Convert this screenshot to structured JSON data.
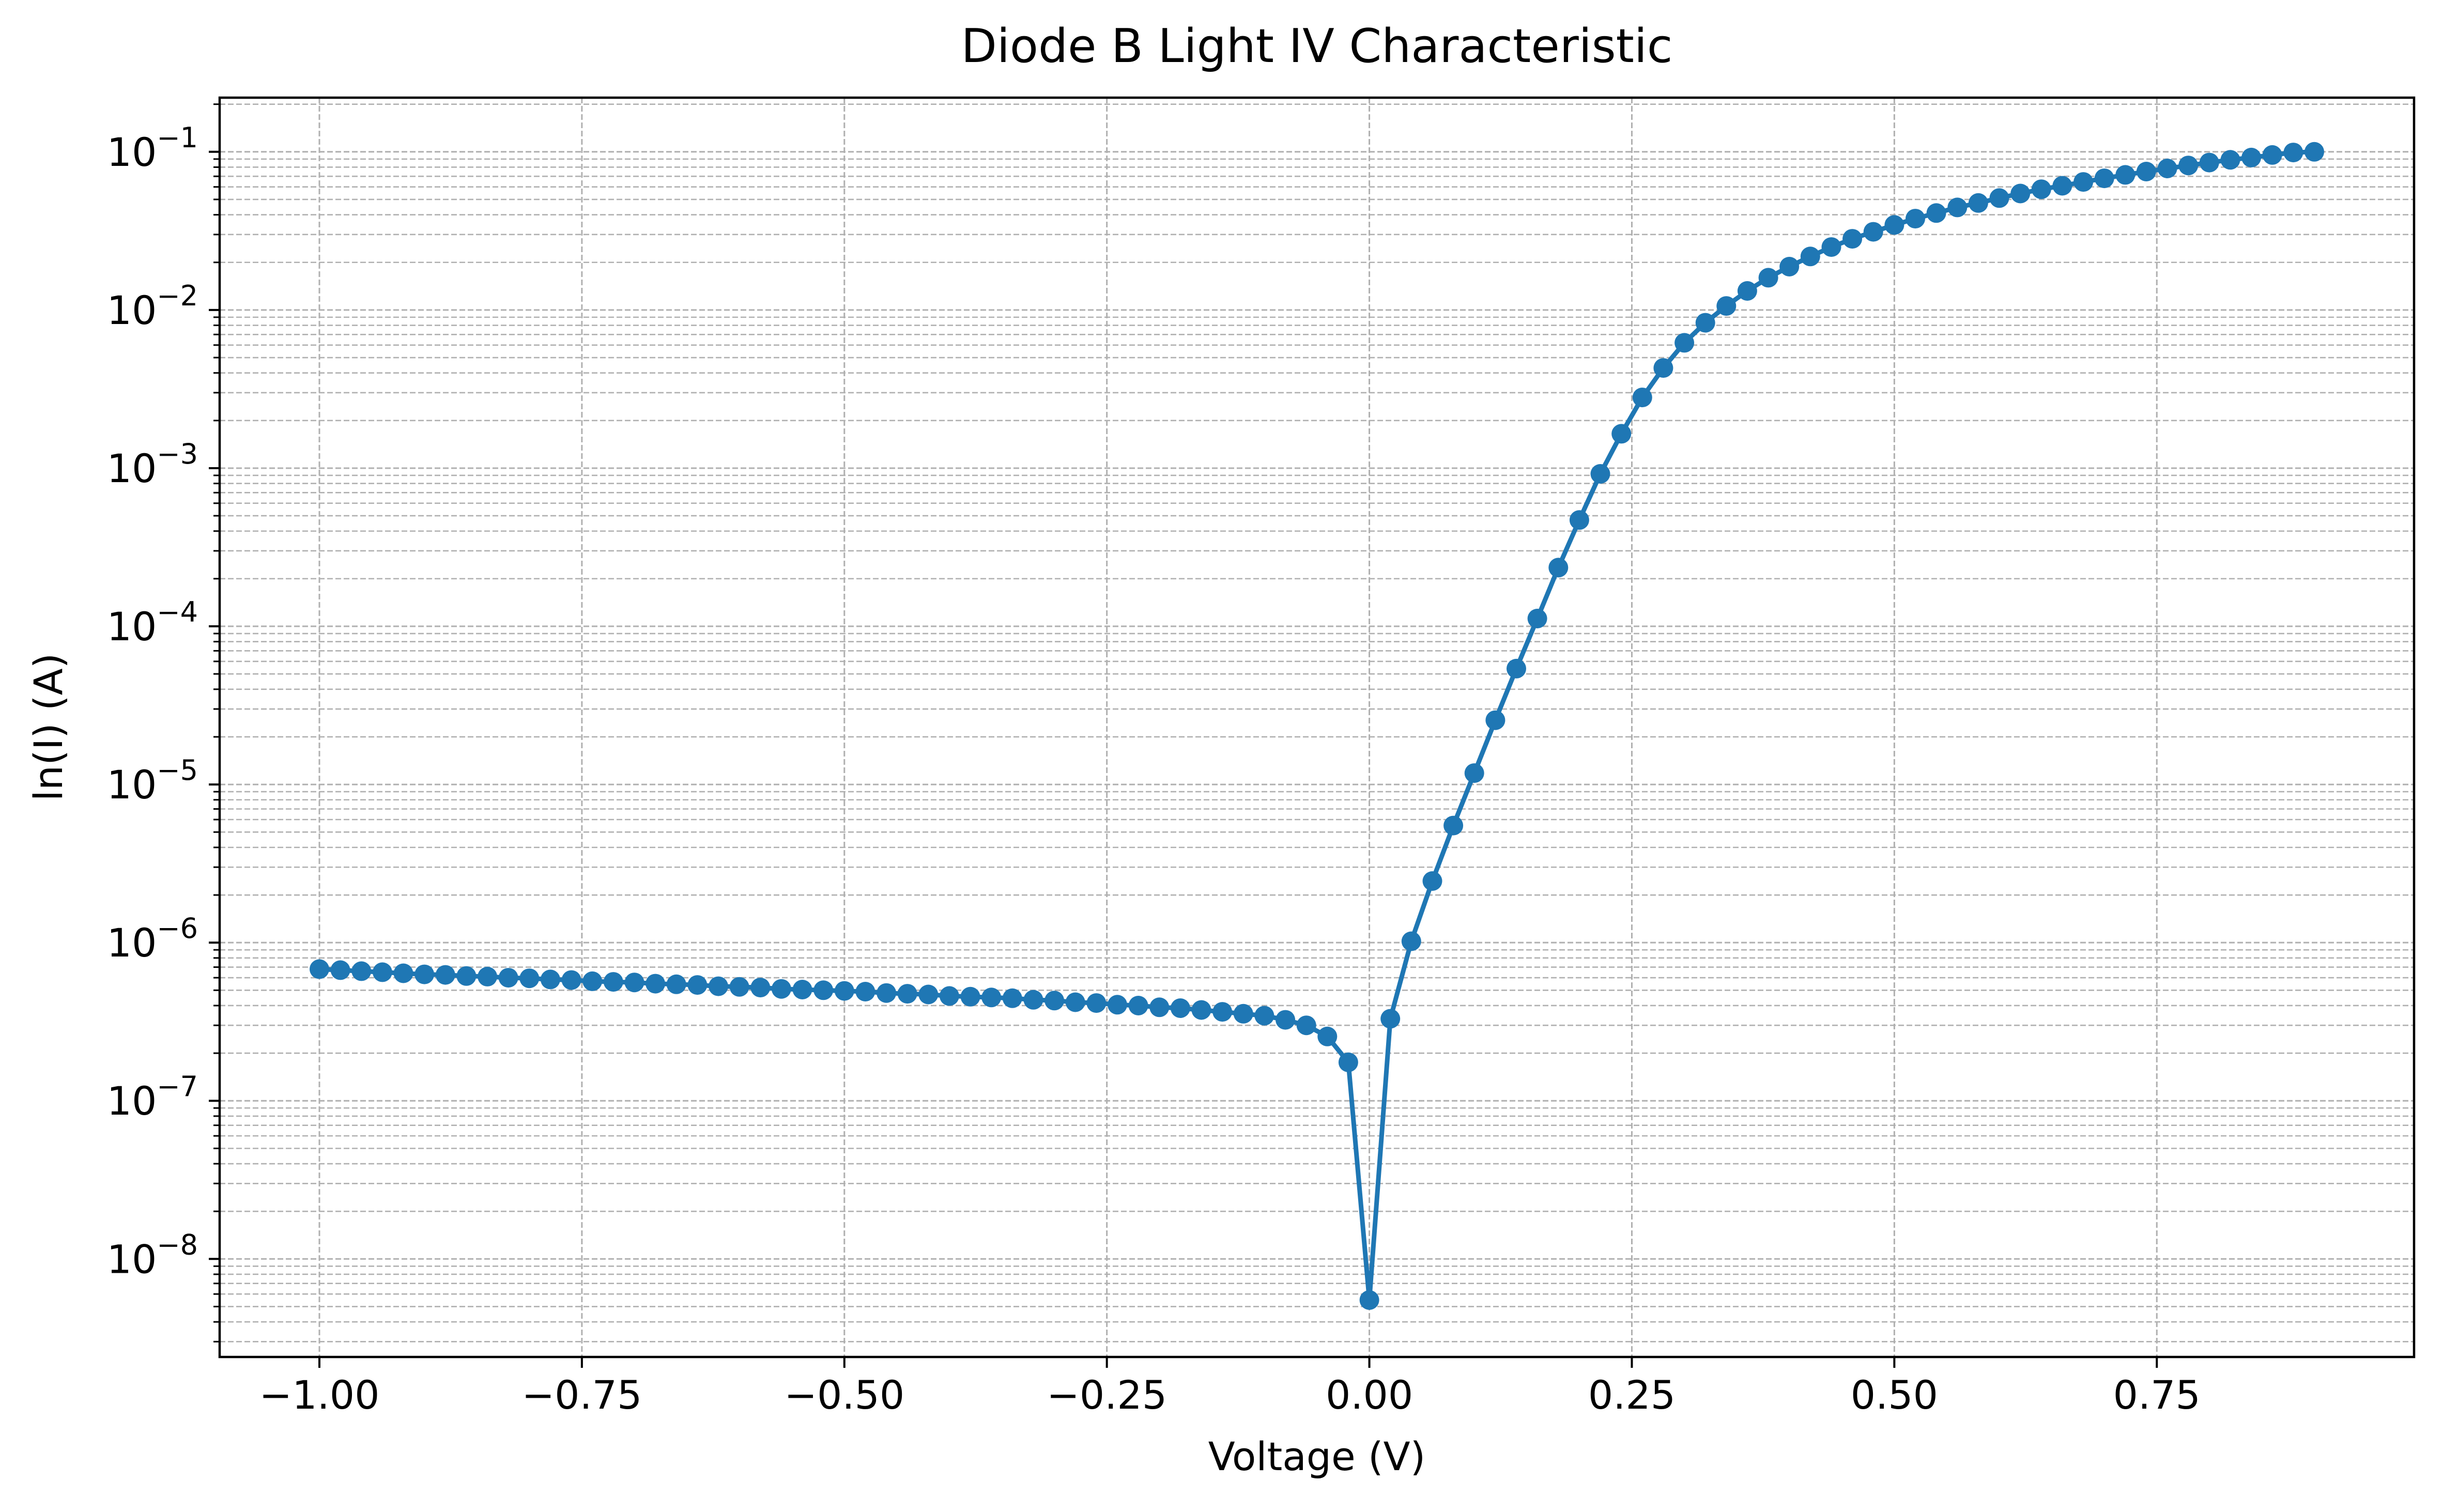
{
  "chart_data": {
    "type": "line",
    "title": "Diode B Light IV Characteristic",
    "xlabel": "Voltage (V)",
    "ylabel": "ln(I) (A)",
    "xscale": "linear",
    "yscale": "log",
    "xlim": [
      -1.095,
      0.995
    ],
    "ylim": [
      2.4e-09,
      0.22
    ],
    "xticks": [
      -1.0,
      -0.75,
      -0.5,
      -0.25,
      0.0,
      0.25,
      0.5,
      0.75
    ],
    "xtick_labels": [
      "−1.00",
      "−0.75",
      "−0.50",
      "−0.25",
      "0.00",
      "0.25",
      "0.50",
      "0.75"
    ],
    "yticks": [
      1e-08,
      1e-07,
      1e-06,
      1e-05,
      0.0001,
      0.001,
      0.01,
      0.1
    ],
    "ytick_labels": [
      {
        "base": "10",
        "exp": "−8"
      },
      {
        "base": "10",
        "exp": "−7"
      },
      {
        "base": "10",
        "exp": "−6"
      },
      {
        "base": "10",
        "exp": "−5"
      },
      {
        "base": "10",
        "exp": "−4"
      },
      {
        "base": "10",
        "exp": "−3"
      },
      {
        "base": "10",
        "exp": "−2"
      },
      {
        "base": "10",
        "exp": "−1"
      }
    ],
    "grid": {
      "major": true,
      "minor": true,
      "style": "dashed"
    },
    "series": [
      {
        "color": "#1f77b4",
        "marker": "circle",
        "x": [
          -1.0,
          -0.98,
          -0.96,
          -0.94,
          -0.92,
          -0.9,
          -0.88,
          -0.86,
          -0.84,
          -0.82,
          -0.8,
          -0.78,
          -0.76,
          -0.74,
          -0.72,
          -0.7,
          -0.68,
          -0.66,
          -0.64,
          -0.62,
          -0.6,
          -0.58,
          -0.56,
          -0.54,
          -0.52,
          -0.5,
          -0.48,
          -0.46,
          -0.44,
          -0.42,
          -0.4,
          -0.38,
          -0.36,
          -0.34,
          -0.32,
          -0.3,
          -0.28,
          -0.26,
          -0.24,
          -0.22,
          -0.2,
          -0.18,
          -0.16,
          -0.14,
          -0.12,
          -0.1,
          -0.08,
          -0.06,
          -0.04,
          -0.02,
          0.0,
          0.02,
          0.04,
          0.06,
          0.08,
          0.1,
          0.12,
          0.14,
          0.16,
          0.18,
          0.2,
          0.22,
          0.24,
          0.26,
          0.28,
          0.3,
          0.32,
          0.34,
          0.36,
          0.38,
          0.4,
          0.42,
          0.44,
          0.46,
          0.48,
          0.5,
          0.52,
          0.54,
          0.56,
          0.58,
          0.6,
          0.62,
          0.64,
          0.66,
          0.68,
          0.7,
          0.72,
          0.74,
          0.76,
          0.78,
          0.8,
          0.82,
          0.84,
          0.86,
          0.88,
          0.9
        ],
        "y": [
          6.8e-07,
          6.7e-07,
          6.6e-07,
          6.5e-07,
          6.4e-07,
          6.3e-07,
          6.25e-07,
          6.15e-07,
          6.1e-07,
          6e-07,
          5.95e-07,
          5.85e-07,
          5.8e-07,
          5.7e-07,
          5.65e-07,
          5.6e-07,
          5.5e-07,
          5.45e-07,
          5.4e-07,
          5.3e-07,
          5.25e-07,
          5.2e-07,
          5.1e-07,
          5.05e-07,
          5e-07,
          4.95e-07,
          4.9e-07,
          4.8e-07,
          4.75e-07,
          4.7e-07,
          4.6e-07,
          4.55e-07,
          4.5e-07,
          4.45e-07,
          4.35e-07,
          4.3e-07,
          4.2e-07,
          4.15e-07,
          4.05e-07,
          4e-07,
          3.9e-07,
          3.85e-07,
          3.75e-07,
          3.65e-07,
          3.55e-07,
          3.45e-07,
          3.25e-07,
          3e-07,
          2.55e-07,
          1.75e-07,
          5.5e-09,
          3.3e-07,
          1.02e-06,
          2.45e-06,
          5.5e-06,
          1.18e-05,
          2.55e-05,
          5.4e-05,
          0.000112,
          0.000235,
          0.00047,
          0.00092,
          0.00165,
          0.0028,
          0.0043,
          0.0062,
          0.0083,
          0.0106,
          0.0132,
          0.016,
          0.0188,
          0.0218,
          0.025,
          0.0282,
          0.0312,
          0.0345,
          0.0378,
          0.041,
          0.0445,
          0.0475,
          0.051,
          0.0545,
          0.058,
          0.061,
          0.0645,
          0.068,
          0.0715,
          0.075,
          0.0785,
          0.082,
          0.0855,
          0.089,
          0.092,
          0.0955,
          0.099,
          0.1
        ]
      }
    ]
  }
}
